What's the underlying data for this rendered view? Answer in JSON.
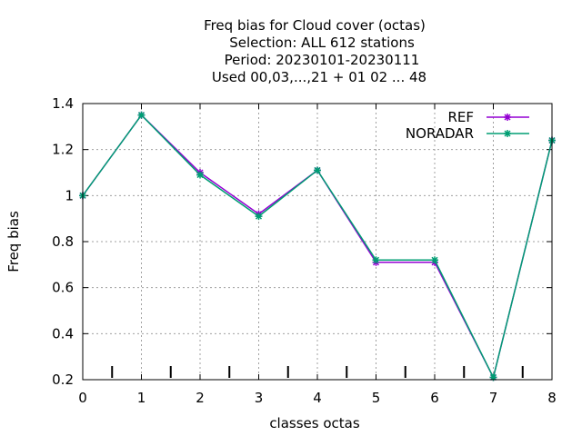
{
  "chart_data": {
    "type": "line",
    "title_lines": [
      "Freq bias  for Cloud cover (octas)",
      "Selection: ALL    612 stations",
      "Period: 20230101-20230111",
      "Used  00,03,...,21  + 01 02 ... 48"
    ],
    "xlabel": "classes octas",
    "ylabel": "Freq bias",
    "xlim": [
      0,
      8
    ],
    "ylim": [
      0.2,
      1.4
    ],
    "x_ticks": [
      "0",
      "1",
      "2",
      "3",
      "4",
      "5",
      "6",
      "7",
      "8"
    ],
    "y_ticks": [
      "0.2",
      "0.4",
      "0.6",
      "0.8",
      "1",
      "1.2",
      "1.4"
    ],
    "minor_x_ticks": [
      0.5,
      1.5,
      2.5,
      3.5,
      4.5,
      5.5,
      6.5,
      7.5
    ],
    "grid": true,
    "legend_position": "top-right",
    "x": [
      0,
      1,
      2,
      3,
      4,
      5,
      6,
      7,
      8
    ],
    "series": [
      {
        "name": "REF",
        "color": "#9400d3",
        "marker": "star",
        "values": [
          1.0,
          1.35,
          1.1,
          0.92,
          1.11,
          0.71,
          0.71,
          0.21,
          1.24
        ]
      },
      {
        "name": "NORADAR",
        "color": "#009e73",
        "marker": "star",
        "values": [
          1.0,
          1.35,
          1.09,
          0.91,
          1.11,
          0.72,
          0.72,
          0.21,
          1.24
        ]
      }
    ]
  }
}
